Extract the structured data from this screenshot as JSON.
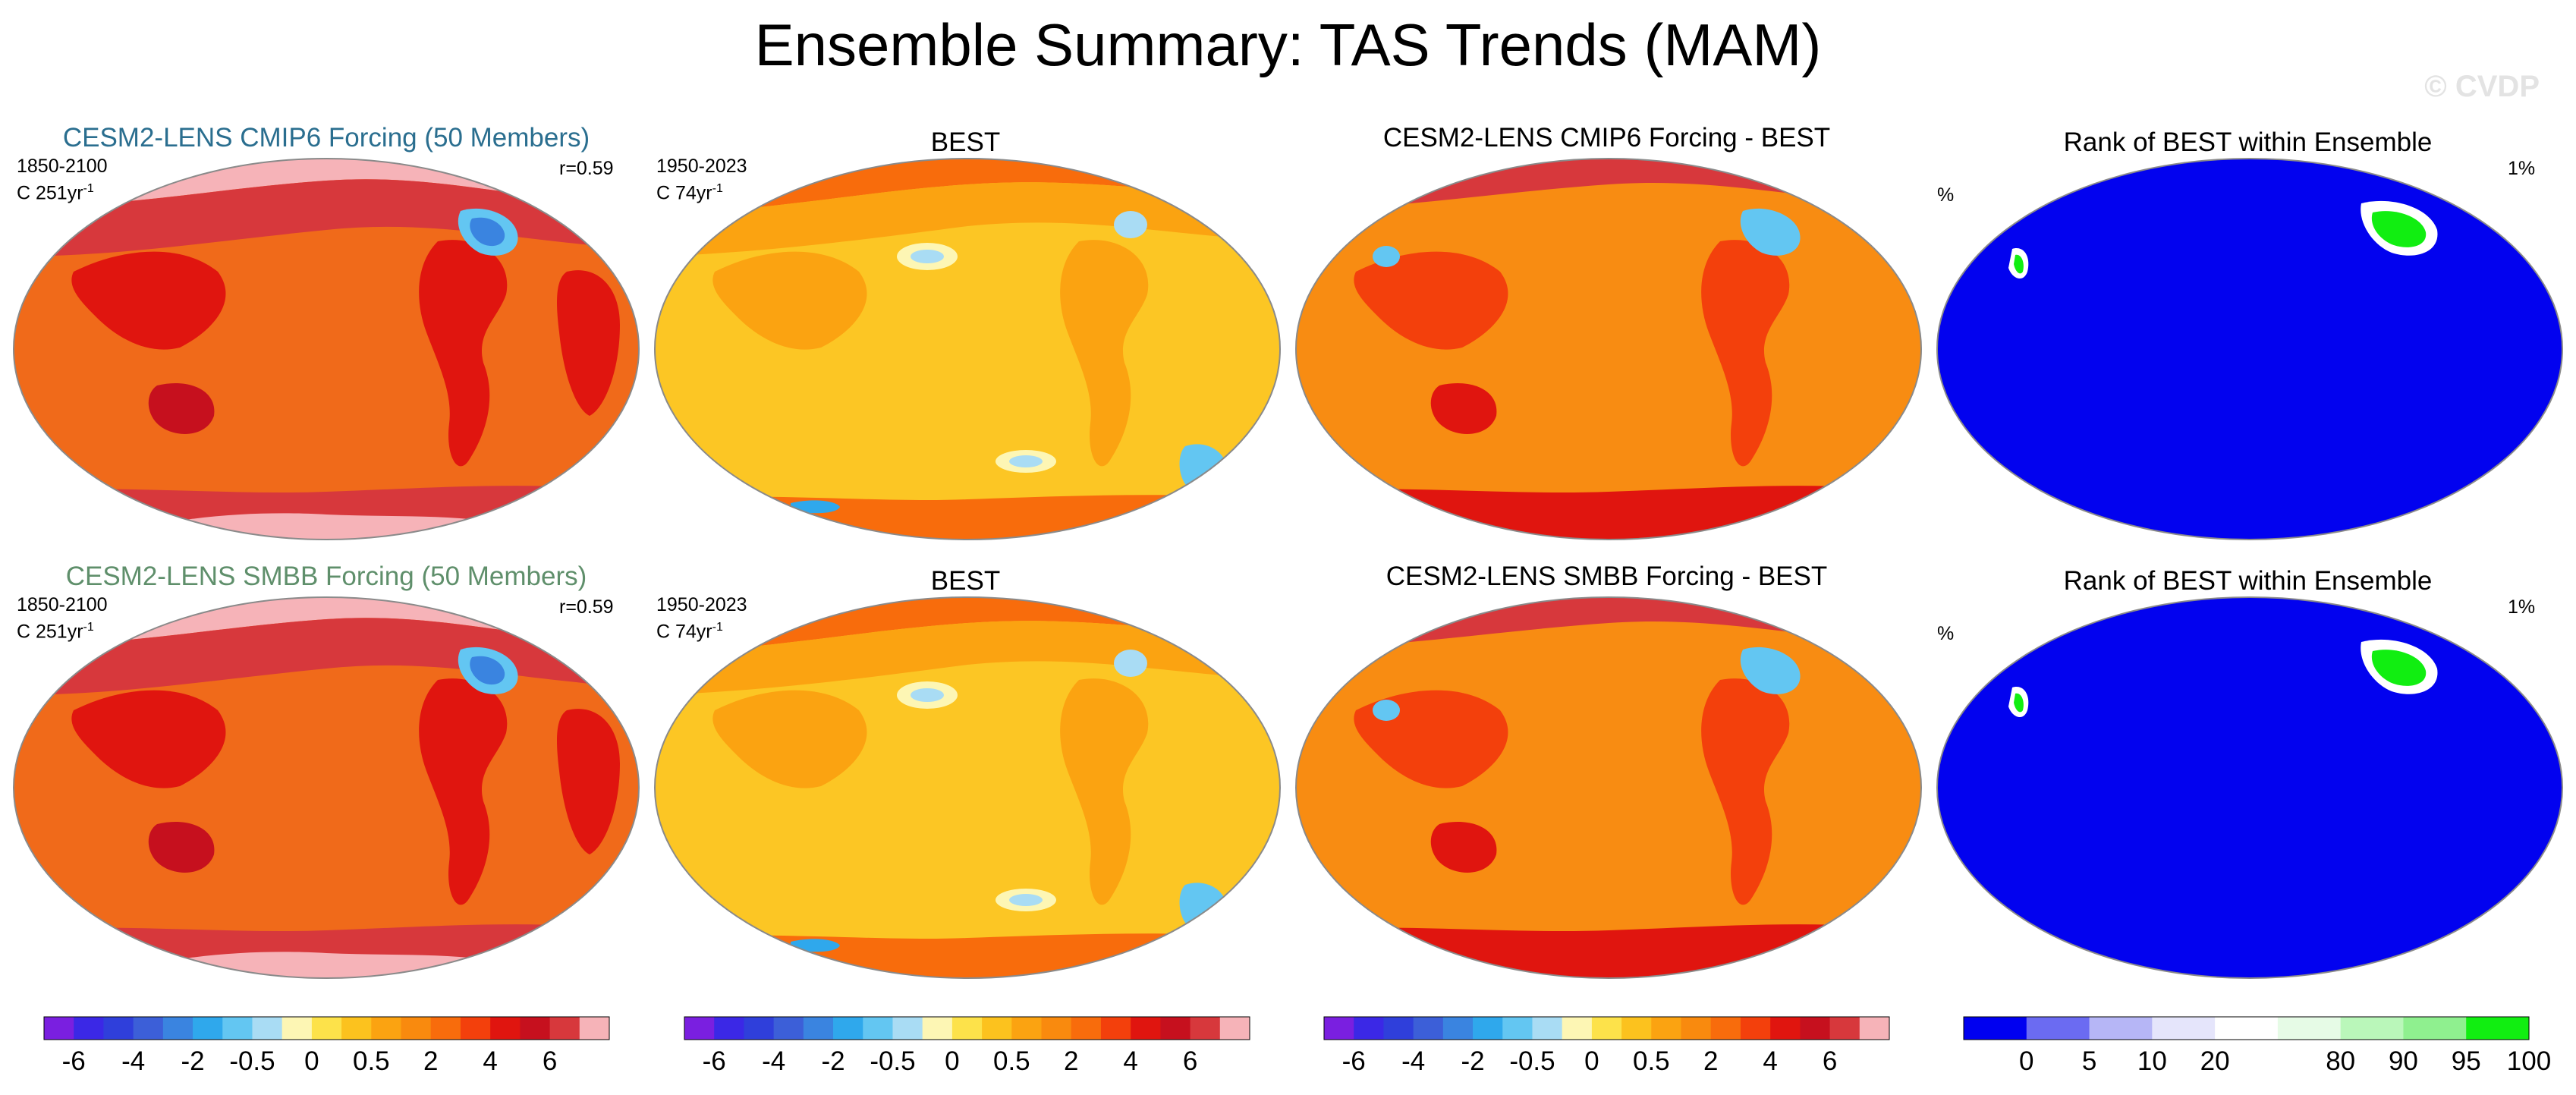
{
  "figure": {
    "title": "Ensemble Summary: TAS Trends (MAM)",
    "watermark": "© CVDP"
  },
  "rows": [
    {
      "ensemble_title": "CESM2-LENS CMIP6 Forcing (50 Members)",
      "ensemble_title_color": "#2a6e8f",
      "ensemble_period": "1850-2100",
      "ensemble_trend": "C 251yr",
      "ensemble_trend_exp": "-1",
      "ensemble_corr": "r=0.59",
      "obs_title": "BEST",
      "obs_period": "1950-2023",
      "obs_trend": "C 74yr",
      "obs_trend_exp": "-1",
      "diff_title": "CESM2-LENS CMIP6 Forcing - BEST",
      "rank_title": "Rank of BEST within Ensemble",
      "rank_left": "%",
      "rank_right": "1%"
    },
    {
      "ensemble_title": "CESM2-LENS SMBB Forcing (50 Members)",
      "ensemble_title_color": "#5f8f6b",
      "ensemble_period": "1850-2100",
      "ensemble_trend": "C 251yr",
      "ensemble_trend_exp": "-1",
      "ensemble_corr": "r=0.59",
      "obs_title": "BEST",
      "obs_period": "1950-2023",
      "obs_trend": "C 74yr",
      "obs_trend_exp": "-1",
      "diff_title": "CESM2-LENS SMBB Forcing - BEST",
      "rank_title": "Rank of BEST within Ensemble",
      "rank_left": "%",
      "rank_right": "1%"
    }
  ],
  "chart_data": {
    "type": "heatmap",
    "variable": "TAS",
    "season": "MAM",
    "trend_colorbar": {
      "colors": [
        "#7a1fe0",
        "#3b28e6",
        "#2f3fdb",
        "#3c5fd8",
        "#3a84e0",
        "#2fa8ec",
        "#63c6f2",
        "#a9dcf4",
        "#fdf6b4",
        "#fde24a",
        "#fcc21e",
        "#fba311",
        "#f98a0e",
        "#f86c0c",
        "#f3400c",
        "#e0150f",
        "#c6101e",
        "#d7383c",
        "#f6b3b8"
      ],
      "tick_labels": [
        "-6",
        "-4",
        "-2",
        "-0.5",
        "0",
        "0.5",
        "2",
        "4",
        "6"
      ],
      "tick_boundaries": [
        1,
        3,
        5,
        7,
        9,
        11,
        13,
        15,
        17
      ]
    },
    "rank_colorbar": {
      "colors": [
        "#0000f0",
        "#6b6bf2",
        "#b6b6f6",
        "#e5e5fb",
        "#ffffff",
        "#e6fbe6",
        "#baf7ba",
        "#8ff08f",
        "#11ee11"
      ],
      "tick_labels": [
        "0",
        "5",
        "10",
        "20",
        "80",
        "90",
        "95",
        "100"
      ],
      "tick_boundaries": [
        1,
        2,
        3,
        4,
        6,
        7,
        8,
        9
      ]
    },
    "map_fill": {
      "ensemble": "#f06a1a",
      "obs": "#fcc624",
      "diff": "#f88c12",
      "rank": "#0202ef"
    },
    "panels": [
      {
        "row": 1,
        "kind": "ensemble_mean",
        "title": "CESM2-LENS CMIP6 Forcing (50 Members)",
        "period": "1850-2100",
        "r": 0.59
      },
      {
        "row": 1,
        "kind": "observations",
        "title": "BEST",
        "period": "1950-2023"
      },
      {
        "row": 1,
        "kind": "difference",
        "title": "CESM2-LENS CMIP6 Forcing - BEST"
      },
      {
        "row": 1,
        "kind": "rank",
        "title": "Rank of BEST within Ensemble"
      },
      {
        "row": 2,
        "kind": "ensemble_mean",
        "title": "CESM2-LENS SMBB Forcing (50 Members)",
        "period": "1850-2100",
        "r": 0.59
      },
      {
        "row": 2,
        "kind": "observations",
        "title": "BEST",
        "period": "1950-2023"
      },
      {
        "row": 2,
        "kind": "difference",
        "title": "CESM2-LENS SMBB Forcing - BEST"
      },
      {
        "row": 2,
        "kind": "rank",
        "title": "Rank of BEST within Ensemble"
      }
    ]
  }
}
